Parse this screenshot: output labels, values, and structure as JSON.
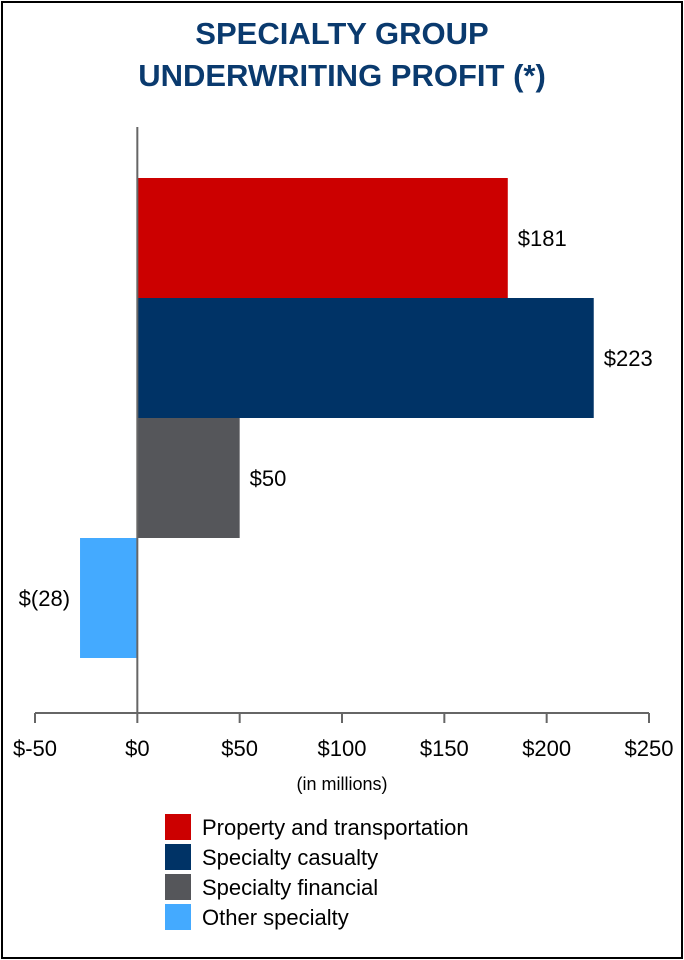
{
  "chart_data": {
    "type": "bar",
    "orientation": "horizontal",
    "title_lines": [
      "SPECIALTY GROUP",
      "UNDERWRITING PROFIT (*)"
    ],
    "xlabel": "(in millions)",
    "xlim": [
      -50,
      250
    ],
    "xticks": [
      -50,
      0,
      50,
      100,
      150,
      200,
      250
    ],
    "xtick_labels": [
      "$-50",
      "$0",
      "$50",
      "$100",
      "$150",
      "$200",
      "$250"
    ],
    "categories": [
      "Property and transportation",
      "Specialty casualty",
      "Specialty financial",
      "Other specialty"
    ],
    "values": [
      181,
      223,
      50,
      -28
    ],
    "data_labels": [
      "$181",
      "$223",
      "$50",
      "$(28)"
    ],
    "colors": [
      "#cc0000",
      "#003366",
      "#55565a",
      "#44aaff"
    ],
    "grid": false,
    "legend_position": "bottom"
  }
}
